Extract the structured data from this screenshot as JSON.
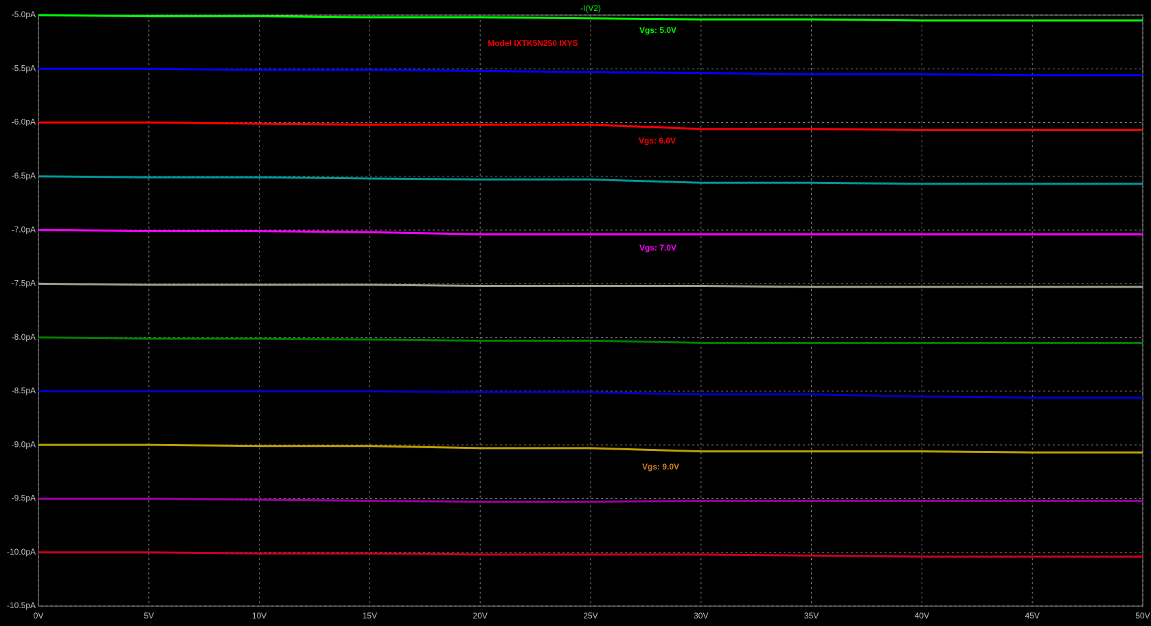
{
  "chart_data": {
    "type": "line",
    "title": "-I(V2)",
    "annotations": [
      {
        "text": "Vgs: 5.0V",
        "color": "#00ff00"
      },
      {
        "text": "Model IXTK5N250 IXYS",
        "color": "#ff0000"
      },
      {
        "text": "Vgs: 6.0V",
        "color": "#ff0000"
      },
      {
        "text": "Vgs: 7.0V",
        "color": "#ff00ff"
      },
      {
        "text": "Vgs: 9.0V",
        "color": "#d08020"
      }
    ],
    "x": [
      0,
      5,
      10,
      15,
      20,
      25,
      30,
      35,
      40,
      45,
      50
    ],
    "series": [
      {
        "color": "#00ff00",
        "values": [
          -5.0,
          -5.01,
          -5.01,
          -5.02,
          -5.02,
          -5.03,
          -5.04,
          -5.04,
          -5.05,
          -5.05,
          -5.05
        ]
      },
      {
        "color": "#0000ff",
        "values": [
          -5.5,
          -5.5,
          -5.51,
          -5.51,
          -5.52,
          -5.53,
          -5.54,
          -5.55,
          -5.55,
          -5.56,
          -5.56
        ]
      },
      {
        "color": "#ff0000",
        "values": [
          -6.0,
          -6.0,
          -6.01,
          -6.02,
          -6.02,
          -6.02,
          -6.06,
          -6.06,
          -6.07,
          -6.07,
          -6.07
        ]
      },
      {
        "color": "#009999",
        "values": [
          -6.5,
          -6.51,
          -6.51,
          -6.52,
          -6.53,
          -6.53,
          -6.56,
          -6.56,
          -6.57,
          -6.57,
          -6.57
        ]
      },
      {
        "color": "#ff00ff",
        "values": [
          -7.0,
          -7.01,
          -7.01,
          -7.02,
          -7.04,
          -7.04,
          -7.04,
          -7.04,
          -7.04,
          -7.04,
          -7.04
        ]
      },
      {
        "color": "#a0a090",
        "values": [
          -7.5,
          -7.51,
          -7.51,
          -7.51,
          -7.52,
          -7.52,
          -7.52,
          -7.53,
          -7.53,
          -7.53,
          -7.53
        ]
      },
      {
        "color": "#008000",
        "values": [
          -8.0,
          -8.01,
          -8.01,
          -8.02,
          -8.03,
          -8.03,
          -8.05,
          -8.05,
          -8.05,
          -8.05,
          -8.05
        ]
      },
      {
        "color": "#0000cc",
        "values": [
          -8.5,
          -8.5,
          -8.5,
          -8.5,
          -8.51,
          -8.51,
          -8.53,
          -8.53,
          -8.55,
          -8.56,
          -8.56
        ]
      },
      {
        "color": "#bf9f00",
        "values": [
          -9.0,
          -9.0,
          -9.01,
          -9.01,
          -9.03,
          -9.03,
          -9.06,
          -9.06,
          -9.06,
          -9.07,
          -9.07
        ]
      },
      {
        "color": "#a000a0",
        "values": [
          -9.5,
          -9.5,
          -9.51,
          -9.52,
          -9.53,
          -9.53,
          -9.52,
          -9.52,
          -9.52,
          -9.52,
          -9.52
        ]
      },
      {
        "color": "#cc0020",
        "values": [
          -10.0,
          -10.0,
          -10.01,
          -10.01,
          -10.02,
          -10.02,
          -10.02,
          -10.03,
          -10.04,
          -10.04,
          -10.04
        ]
      }
    ],
    "xlim": [
      0,
      50
    ],
    "xticks": [
      {
        "value": 0,
        "label": "0V"
      },
      {
        "value": 5,
        "label": "5V"
      },
      {
        "value": 10,
        "label": "10V"
      },
      {
        "value": 15,
        "label": "15V"
      },
      {
        "value": 20,
        "label": "20V"
      },
      {
        "value": 25,
        "label": "25V"
      },
      {
        "value": 30,
        "label": "30V"
      },
      {
        "value": 35,
        "label": "35V"
      },
      {
        "value": 40,
        "label": "40V"
      },
      {
        "value": 45,
        "label": "45V"
      },
      {
        "value": 50,
        "label": "50V"
      }
    ],
    "ylim": [
      -10.5,
      -5.0
    ],
    "yticks": [
      {
        "value": -5.0,
        "label": "-5.0pA"
      },
      {
        "value": -5.5,
        "label": "-5.5pA"
      },
      {
        "value": -6.0,
        "label": "-6.0pA"
      },
      {
        "value": -6.5,
        "label": "-6.5pA"
      },
      {
        "value": -7.0,
        "label": "-7.0pA"
      },
      {
        "value": -7.5,
        "label": "-7.5pA"
      },
      {
        "value": -8.0,
        "label": "-8.0pA"
      },
      {
        "value": -8.5,
        "label": "-8.5pA"
      },
      {
        "value": -9.0,
        "label": "-9.0pA"
      },
      {
        "value": -9.5,
        "label": "-9.5pA"
      },
      {
        "value": -10.0,
        "label": "-10.0pA"
      },
      {
        "value": -10.5,
        "label": "-10.5pA"
      }
    ],
    "grid": true
  }
}
